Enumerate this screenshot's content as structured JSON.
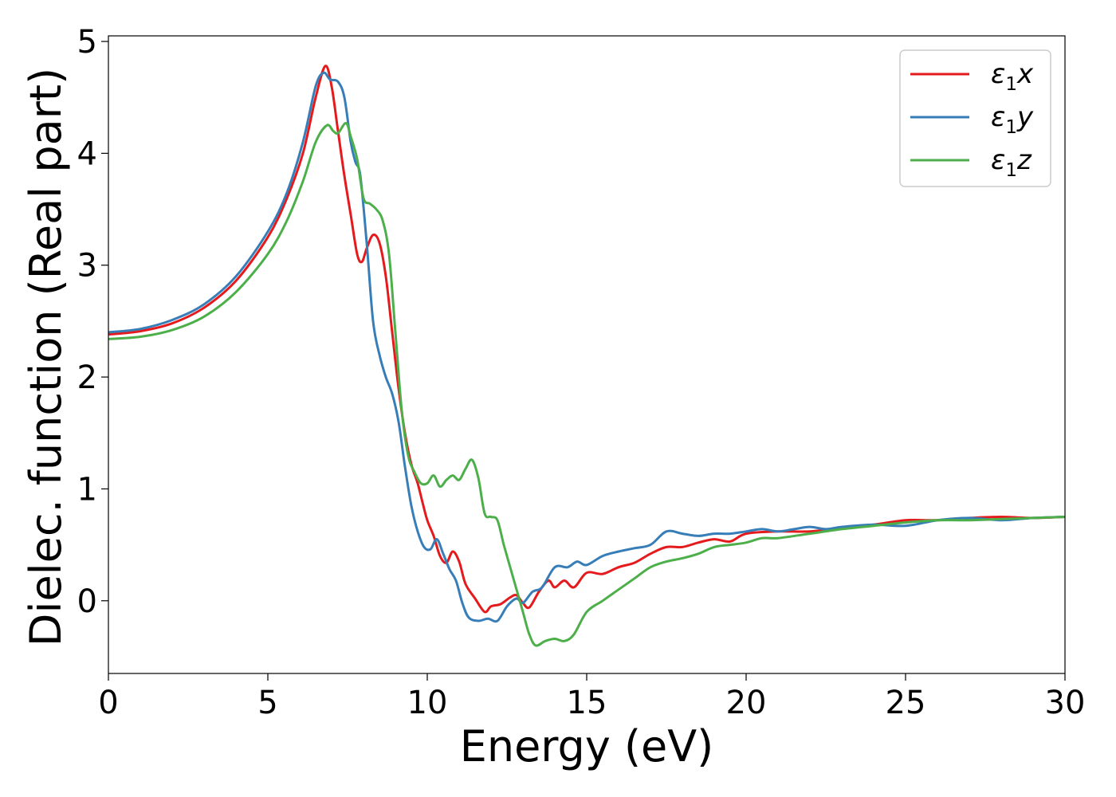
{
  "chart_data": {
    "type": "line",
    "xlabel": "Energy (eV)",
    "ylabel": "Dielec. function (Real part)",
    "xlim": [
      0,
      30
    ],
    "ylim": [
      -0.65,
      5.05
    ],
    "xticks": [
      0,
      5,
      10,
      15,
      20,
      25,
      30
    ],
    "xtick_labels": [
      "0",
      "5",
      "10",
      "15",
      "20",
      "25",
      "30"
    ],
    "yticks": [
      0,
      1,
      2,
      3,
      4,
      5
    ],
    "ytick_labels": [
      "0",
      "1",
      "2",
      "3",
      "4",
      "5"
    ],
    "grid": false,
    "legend_position": "top-right",
    "series": [
      {
        "name": "ε1x",
        "legend": {
          "symbol": "ε",
          "sub": "1",
          "axis": "x"
        },
        "color": "#e41a1c",
        "points": [
          [
            0,
            2.38
          ],
          [
            1,
            2.41
          ],
          [
            2,
            2.48
          ],
          [
            3,
            2.62
          ],
          [
            4,
            2.86
          ],
          [
            5,
            3.25
          ],
          [
            5.6,
            3.6
          ],
          [
            6.1,
            4.0
          ],
          [
            6.5,
            4.5
          ],
          [
            6.8,
            4.78
          ],
          [
            7.0,
            4.6
          ],
          [
            7.2,
            4.2
          ],
          [
            7.4,
            3.8
          ],
          [
            7.6,
            3.45
          ],
          [
            7.8,
            3.1
          ],
          [
            7.95,
            3.03
          ],
          [
            8.1,
            3.15
          ],
          [
            8.3,
            3.27
          ],
          [
            8.5,
            3.2
          ],
          [
            8.7,
            2.9
          ],
          [
            8.9,
            2.4
          ],
          [
            9.1,
            1.9
          ],
          [
            9.3,
            1.5
          ],
          [
            9.5,
            1.22
          ],
          [
            9.7,
            1.05
          ],
          [
            9.85,
            0.88
          ],
          [
            10.0,
            0.72
          ],
          [
            10.2,
            0.58
          ],
          [
            10.4,
            0.4
          ],
          [
            10.6,
            0.34
          ],
          [
            10.8,
            0.44
          ],
          [
            11.0,
            0.35
          ],
          [
            11.2,
            0.15
          ],
          [
            11.5,
            0.02
          ],
          [
            11.8,
            -0.1
          ],
          [
            12.0,
            -0.05
          ],
          [
            12.3,
            -0.03
          ],
          [
            12.6,
            0.03
          ],
          [
            12.8,
            0.05
          ],
          [
            13.0,
            -0.02
          ],
          [
            13.2,
            -0.06
          ],
          [
            13.5,
            0.08
          ],
          [
            13.8,
            0.18
          ],
          [
            14.0,
            0.12
          ],
          [
            14.3,
            0.18
          ],
          [
            14.6,
            0.12
          ],
          [
            15.0,
            0.25
          ],
          [
            15.5,
            0.24
          ],
          [
            16.0,
            0.3
          ],
          [
            16.5,
            0.34
          ],
          [
            17.0,
            0.42
          ],
          [
            17.5,
            0.48
          ],
          [
            18.0,
            0.48
          ],
          [
            18.5,
            0.52
          ],
          [
            19.0,
            0.55
          ],
          [
            19.5,
            0.53
          ],
          [
            20.0,
            0.6
          ],
          [
            21.0,
            0.62
          ],
          [
            22.0,
            0.62
          ],
          [
            23.0,
            0.65
          ],
          [
            24.0,
            0.68
          ],
          [
            25.0,
            0.72
          ],
          [
            26.0,
            0.72
          ],
          [
            27.0,
            0.74
          ],
          [
            28.0,
            0.75
          ],
          [
            29.0,
            0.74
          ],
          [
            30.0,
            0.75
          ]
        ]
      },
      {
        "name": "ε1y",
        "legend": {
          "symbol": "ε",
          "sub": "1",
          "axis": "y"
        },
        "color": "#377eb8",
        "points": [
          [
            0,
            2.4
          ],
          [
            1,
            2.43
          ],
          [
            2,
            2.51
          ],
          [
            3,
            2.65
          ],
          [
            4,
            2.9
          ],
          [
            5,
            3.3
          ],
          [
            5.6,
            3.65
          ],
          [
            6.1,
            4.1
          ],
          [
            6.5,
            4.6
          ],
          [
            6.75,
            4.72
          ],
          [
            6.95,
            4.66
          ],
          [
            7.2,
            4.64
          ],
          [
            7.4,
            4.5
          ],
          [
            7.6,
            4.1
          ],
          [
            7.75,
            3.92
          ],
          [
            7.9,
            3.8
          ],
          [
            8.1,
            3.2
          ],
          [
            8.3,
            2.5
          ],
          [
            8.5,
            2.2
          ],
          [
            8.7,
            2.0
          ],
          [
            8.9,
            1.85
          ],
          [
            9.1,
            1.6
          ],
          [
            9.3,
            1.2
          ],
          [
            9.5,
            0.85
          ],
          [
            9.7,
            0.62
          ],
          [
            9.9,
            0.48
          ],
          [
            10.1,
            0.46
          ],
          [
            10.3,
            0.55
          ],
          [
            10.5,
            0.42
          ],
          [
            10.7,
            0.28
          ],
          [
            10.9,
            0.18
          ],
          [
            11.1,
            -0.02
          ],
          [
            11.3,
            -0.15
          ],
          [
            11.6,
            -0.18
          ],
          [
            11.9,
            -0.16
          ],
          [
            12.2,
            -0.18
          ],
          [
            12.5,
            -0.05
          ],
          [
            12.8,
            0.02
          ],
          [
            13.0,
            -0.02
          ],
          [
            13.3,
            0.08
          ],
          [
            13.6,
            0.12
          ],
          [
            14.0,
            0.3
          ],
          [
            14.4,
            0.3
          ],
          [
            14.7,
            0.35
          ],
          [
            15.0,
            0.32
          ],
          [
            15.5,
            0.4
          ],
          [
            16.0,
            0.44
          ],
          [
            16.5,
            0.47
          ],
          [
            17.0,
            0.5
          ],
          [
            17.5,
            0.62
          ],
          [
            18.0,
            0.6
          ],
          [
            18.5,
            0.58
          ],
          [
            19.0,
            0.6
          ],
          [
            19.5,
            0.6
          ],
          [
            20.0,
            0.62
          ],
          [
            20.5,
            0.64
          ],
          [
            21.0,
            0.62
          ],
          [
            21.5,
            0.64
          ],
          [
            22.0,
            0.66
          ],
          [
            22.5,
            0.64
          ],
          [
            23.0,
            0.66
          ],
          [
            24.0,
            0.68
          ],
          [
            25.0,
            0.67
          ],
          [
            26.0,
            0.72
          ],
          [
            27.0,
            0.74
          ],
          [
            28.0,
            0.72
          ],
          [
            29.0,
            0.74
          ],
          [
            30.0,
            0.75
          ]
        ]
      },
      {
        "name": "ε1z",
        "legend": {
          "symbol": "ε",
          "sub": "1",
          "axis": "z"
        },
        "color": "#4daf4a",
        "points": [
          [
            0,
            2.34
          ],
          [
            1,
            2.36
          ],
          [
            2,
            2.42
          ],
          [
            3,
            2.54
          ],
          [
            4,
            2.76
          ],
          [
            5,
            3.1
          ],
          [
            5.6,
            3.4
          ],
          [
            6.1,
            3.75
          ],
          [
            6.5,
            4.1
          ],
          [
            6.85,
            4.25
          ],
          [
            7.05,
            4.2
          ],
          [
            7.2,
            4.18
          ],
          [
            7.45,
            4.27
          ],
          [
            7.6,
            4.15
          ],
          [
            7.8,
            3.95
          ],
          [
            8.0,
            3.6
          ],
          [
            8.2,
            3.55
          ],
          [
            8.4,
            3.5
          ],
          [
            8.6,
            3.4
          ],
          [
            8.8,
            3.1
          ],
          [
            9.0,
            2.4
          ],
          [
            9.2,
            1.7
          ],
          [
            9.4,
            1.3
          ],
          [
            9.6,
            1.15
          ],
          [
            9.8,
            1.05
          ],
          [
            10.0,
            1.05
          ],
          [
            10.2,
            1.12
          ],
          [
            10.4,
            1.02
          ],
          [
            10.6,
            1.08
          ],
          [
            10.8,
            1.12
          ],
          [
            11.0,
            1.08
          ],
          [
            11.2,
            1.18
          ],
          [
            11.4,
            1.26
          ],
          [
            11.6,
            1.1
          ],
          [
            11.8,
            0.78
          ],
          [
            12.0,
            0.75
          ],
          [
            12.2,
            0.72
          ],
          [
            12.4,
            0.5
          ],
          [
            12.6,
            0.3
          ],
          [
            12.8,
            0.1
          ],
          [
            13.0,
            -0.1
          ],
          [
            13.2,
            -0.3
          ],
          [
            13.4,
            -0.4
          ],
          [
            13.7,
            -0.36
          ],
          [
            14.0,
            -0.34
          ],
          [
            14.3,
            -0.36
          ],
          [
            14.6,
            -0.3
          ],
          [
            15.0,
            -0.1
          ],
          [
            15.5,
            0.0
          ],
          [
            16.0,
            0.1
          ],
          [
            16.5,
            0.2
          ],
          [
            17.0,
            0.3
          ],
          [
            17.5,
            0.35
          ],
          [
            18.0,
            0.38
          ],
          [
            18.5,
            0.42
          ],
          [
            19.0,
            0.48
          ],
          [
            19.5,
            0.5
          ],
          [
            20.0,
            0.52
          ],
          [
            20.5,
            0.56
          ],
          [
            21.0,
            0.56
          ],
          [
            22.0,
            0.6
          ],
          [
            23.0,
            0.64
          ],
          [
            24.0,
            0.67
          ],
          [
            25.0,
            0.7
          ],
          [
            26.0,
            0.72
          ],
          [
            27.0,
            0.72
          ],
          [
            28.0,
            0.73
          ],
          [
            29.0,
            0.74
          ],
          [
            30.0,
            0.75
          ]
        ]
      }
    ]
  }
}
